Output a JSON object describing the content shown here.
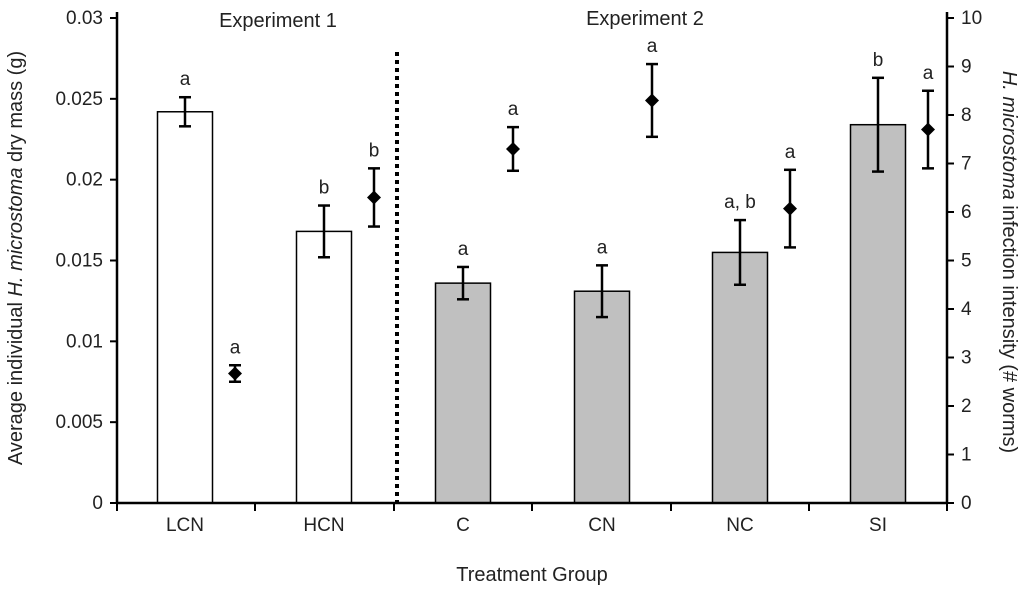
{
  "chart_data": {
    "type": "bar",
    "categories": [
      "LCN",
      "HCN",
      "C",
      "CN",
      "NC",
      "SI"
    ],
    "xlabel": "Treatment Group",
    "ylabel_left": {
      "pre": "Average individual ",
      "italic": "H. microstoma",
      "post": " dry mass (g)"
    },
    "ylabel_right": {
      "italic": "H. microstoma",
      "post": " infection intensity (# worms)"
    },
    "ylim_left": [
      0,
      0.03
    ],
    "ylim_right": [
      0,
      10
    ],
    "left_ticks": [
      "0",
      "0.005",
      "0.01",
      "0.015",
      "0.02",
      "0.025",
      "0.03"
    ],
    "right_ticks": [
      "0",
      "1",
      "2",
      "3",
      "4",
      "5",
      "6",
      "7",
      "8",
      "9",
      "10"
    ],
    "experiment_labels": [
      "Experiment 1",
      "Experiment 2"
    ],
    "bar_series": {
      "name": "Average individual dry mass (g)",
      "values": [
        0.0242,
        0.0168,
        0.0136,
        0.0131,
        0.0155,
        0.0234
      ],
      "errors": [
        0.0009,
        0.0016,
        0.001,
        0.0016,
        0.002,
        0.0029
      ],
      "fills": [
        "#ffffff",
        "#ffffff",
        "#c0c0c0",
        "#c0c0c0",
        "#c0c0c0",
        "#c0c0c0"
      ],
      "sig_labels": [
        "a",
        "b",
        "a",
        "a",
        "a, b",
        "b"
      ]
    },
    "point_series": {
      "name": "Infection intensity (# worms)",
      "values": [
        2.67,
        6.3,
        7.3,
        8.3,
        6.07,
        7.7
      ],
      "errors": [
        0.17,
        0.6,
        0.45,
        0.75,
        0.8,
        0.8
      ],
      "sig_labels": [
        "a",
        "b",
        "a",
        "a",
        "a",
        "a"
      ]
    }
  }
}
